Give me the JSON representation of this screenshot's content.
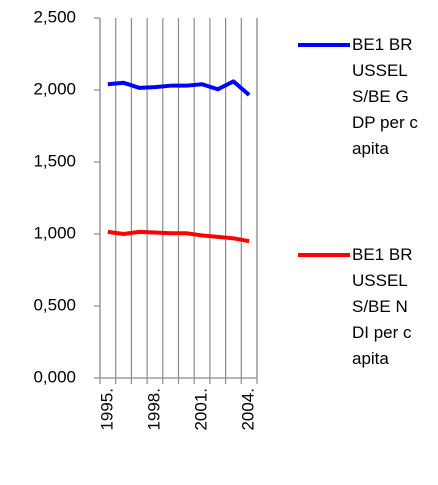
{
  "chart_data": {
    "type": "line",
    "categories": [
      "1995.",
      null,
      null,
      "1998.",
      null,
      null,
      "2001.",
      null,
      null,
      "2004."
    ],
    "series": [
      {
        "name": "BE1 BRUSSELS/BE GDP per capita",
        "color": "#0000ff",
        "values": [
          2040,
          2050,
          2015,
          2020,
          2030,
          2030,
          2040,
          2005,
          2060,
          1965
        ]
      },
      {
        "name": "BE1 BRUSSELS/BE NDI per capita",
        "color": "#ff0000",
        "values": [
          1015,
          1000,
          1015,
          1010,
          1005,
          1005,
          990,
          980,
          970,
          950
        ]
      }
    ],
    "ylim": [
      0,
      2500
    ],
    "yticks": [
      {
        "value": 0,
        "label": "0,000"
      },
      {
        "value": 500,
        "label": "0,500"
      },
      {
        "value": 1000,
        "label": "1,000"
      },
      {
        "value": 1500,
        "label": "1,500"
      },
      {
        "value": 2000,
        "label": "2,000"
      },
      {
        "value": 2500,
        "label": "2,500"
      }
    ],
    "grid": true
  }
}
